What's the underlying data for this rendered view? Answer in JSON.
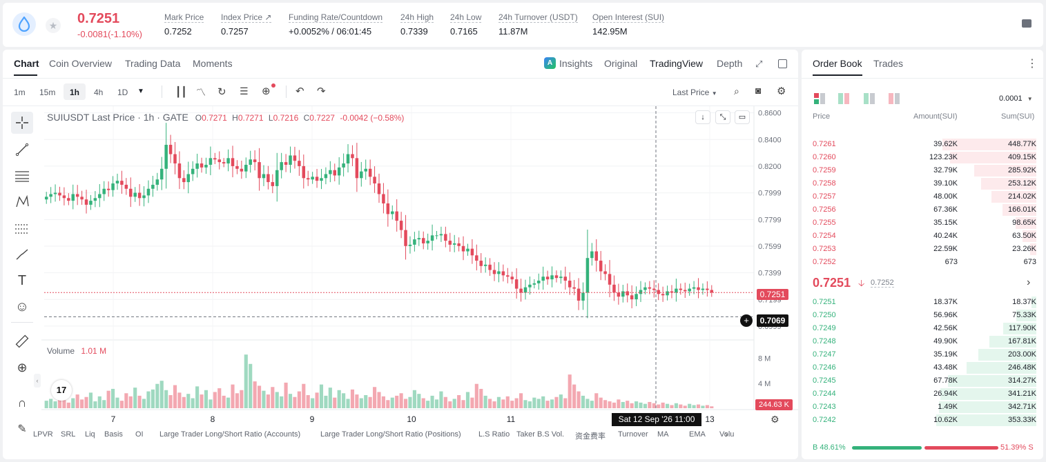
{
  "header": {
    "price": "0.7251",
    "change": "-0.0081(-1.10%)",
    "stats": [
      {
        "label": "Mark Price",
        "value": "0.7252"
      },
      {
        "label": "Index Price ↗",
        "value": "0.7257"
      },
      {
        "label": "Funding Rate/Countdown",
        "value_green": "+0.0052%",
        "value": "/ 06:01:45"
      },
      {
        "label": "24h High",
        "value": "0.7339"
      },
      {
        "label": "24h Low",
        "value": "0.7165"
      },
      {
        "label": "24h Turnover (USDT)",
        "value": "11.87M"
      },
      {
        "label": "Open Interest (SUI)",
        "value": "142.95M"
      }
    ]
  },
  "chart_tabs": [
    "Chart",
    "Coin Overview",
    "Trading Data",
    "Moments"
  ],
  "view_tabs": {
    "insights": "Insights",
    "original": "Original",
    "tradingview": "TradingView",
    "depth": "Depth"
  },
  "intervals": [
    "1m",
    "15m",
    "1h",
    "4h",
    "1D"
  ],
  "price_type": "Last Price",
  "legend": {
    "symbol": "SUIUSDT Last Price · 1h · GATE",
    "o": "0.7271",
    "h": "0.7271",
    "l": "0.7216",
    "c": "0.7227",
    "chg": "-0.0042 (−0.58%)"
  },
  "volume_label": "Volume",
  "volume_value": "1.01 M",
  "price_axis": [
    "0.8600",
    "0.8400",
    "0.8200",
    "0.7999",
    "0.7799",
    "0.7599",
    "0.7399",
    "0.7199",
    "0.6999"
  ],
  "volume_axis": [
    "8 M",
    "4 M"
  ],
  "time_axis": [
    "7",
    "8",
    "9",
    "10",
    "11",
    "13"
  ],
  "last_price_tag": "0.7251",
  "cursor_price_tag": "0.7069",
  "cursor_time_tag": "Sat 12 Sep '26   11:00",
  "volume_tag": "244.63 K",
  "tv_logo": "17",
  "indicators": [
    "LPVR",
    "SRL",
    "Liq",
    "Basis",
    "OI",
    "Large Trader Long/Short Ratio (Accounts)",
    "Large Trader Long/Short Ratio (Positions)",
    "L.S Ratio",
    "Taker B.S Vol.",
    "资金费率",
    "Turnover",
    "MA",
    "EMA",
    "Volu"
  ],
  "chart_data": {
    "type": "candlestick",
    "ylim": [
      0.69,
      0.865
    ],
    "x_day_labels": [
      "7",
      "8",
      "9",
      "10",
      "11",
      "13"
    ],
    "close_series": [
      0.797,
      0.799,
      0.8,
      0.798,
      0.796,
      0.794,
      0.799,
      0.797,
      0.795,
      0.791,
      0.794,
      0.796,
      0.799,
      0.803,
      0.802,
      0.807,
      0.809,
      0.806,
      0.803,
      0.797,
      0.8,
      0.796,
      0.798,
      0.803,
      0.806,
      0.81,
      0.818,
      0.836,
      0.829,
      0.822,
      0.811,
      0.808,
      0.814,
      0.818,
      0.822,
      0.819,
      0.821,
      0.826,
      0.825,
      0.823,
      0.822,
      0.826,
      0.82,
      0.818,
      0.816,
      0.821,
      0.825,
      0.823,
      0.811,
      0.814,
      0.808,
      0.805,
      0.817,
      0.823,
      0.821,
      0.828,
      0.824,
      0.82,
      0.811,
      0.81,
      0.812,
      0.809,
      0.811,
      0.814,
      0.817,
      0.813,
      0.819,
      0.822,
      0.829,
      0.826,
      0.811,
      0.816,
      0.818,
      0.812,
      0.807,
      0.799,
      0.792,
      0.784,
      0.786,
      0.779,
      0.772,
      0.76,
      0.761,
      0.765,
      0.766,
      0.762,
      0.764,
      0.768,
      0.768,
      0.769,
      0.764,
      0.761,
      0.762,
      0.76,
      0.756,
      0.758,
      0.753,
      0.749,
      0.745,
      0.746,
      0.742,
      0.739,
      0.741,
      0.738,
      0.737,
      0.735,
      0.728,
      0.725,
      0.729,
      0.731,
      0.732,
      0.734,
      0.737,
      0.735,
      0.738,
      0.736,
      0.737,
      0.734,
      0.729,
      0.728,
      0.719,
      0.725,
      0.751,
      0.756,
      0.749,
      0.741,
      0.739,
      0.731,
      0.725,
      0.722,
      0.726,
      0.723,
      0.72,
      0.724,
      0.727,
      0.729,
      0.728,
      0.727,
      0.724,
      0.723,
      0.726,
      0.725,
      0.728,
      0.727,
      0.726,
      0.728,
      0.729,
      0.727,
      0.728,
      0.727,
      0.7251
    ],
    "volume_series": [
      1.2,
      1.5,
      1.1,
      2.0,
      1.3,
      0.9,
      1.6,
      2.2,
      1.4,
      1.8,
      2.5,
      1.1,
      1.9,
      1.3,
      2.8,
      3.1,
      1.7,
      1.2,
      2.4,
      1.9,
      3.3,
      2.0,
      1.5,
      2.7,
      3.0,
      3.9,
      4.4,
      2.9,
      2.1,
      3.7,
      2.5,
      1.8,
      2.3,
      1.6,
      3.5,
      2.2,
      2.9,
      1.4,
      2.6,
      3.2,
      2.0,
      1.7,
      3.8,
      2.4,
      2.9,
      8.6,
      7.1,
      4.3,
      3.6,
      2.8,
      2.2,
      3.4,
      2.6,
      1.9,
      4.1,
      2.3,
      1.8,
      2.7,
      3.9,
      2.1,
      1.6,
      2.5,
      3.8,
      2.0,
      3.3,
      1.7,
      2.9,
      2.4,
      1.5,
      3.0,
      2.2,
      1.6,
      2.1,
      1.8,
      3.4,
      2.6,
      1.9,
      1.3,
      1.7,
      2.0,
      2.4,
      1.5,
      1.8,
      2.9,
      2.3,
      1.6,
      1.2,
      2.0,
      1.4,
      2.7,
      1.8,
      1.1,
      1.5,
      2.1,
      1.3,
      2.6,
      1.7,
      3.9,
      3.1,
      2.0,
      1.5,
      1.1,
      1.8,
      1.4,
      1.9,
      1.2,
      1.6,
      2.4,
      1.3,
      1.1,
      1.7,
      1.5,
      1.9,
      1.2,
      1.4,
      1.8,
      2.2,
      1.6,
      5.4,
      3.8,
      2.7,
      2.0,
      1.5,
      1.2,
      2.4,
      1.7,
      1.3,
      1.1,
      0.9,
      1.4,
      1.0,
      1.2,
      0.8,
      1.1,
      0.9,
      0.7,
      1.0,
      0.8,
      0.6,
      0.9,
      0.7,
      0.5,
      0.8,
      0.6,
      0.4,
      0.7,
      0.5,
      0.6,
      0.4,
      0.5,
      0.3,
      0.2,
      0.24
    ]
  },
  "orderbook": {
    "tabs": [
      "Order Book",
      "Trades"
    ],
    "precision": "0.0001",
    "columns": [
      "Price",
      "Amount(SUI)",
      "Sum(SUI)"
    ],
    "asks": [
      {
        "price": "0.7261",
        "amount": "39.62K",
        "sum": "448.77K",
        "pct": 0.94
      },
      {
        "price": "0.7260",
        "amount": "123.23K",
        "sum": "409.15K",
        "pct": 0.86
      },
      {
        "price": "0.7259",
        "amount": "32.79K",
        "sum": "285.92K",
        "pct": 0.62
      },
      {
        "price": "0.7258",
        "amount": "39.10K",
        "sum": "253.12K",
        "pct": 0.55
      },
      {
        "price": "0.7257",
        "amount": "48.00K",
        "sum": "214.02K",
        "pct": 0.45
      },
      {
        "price": "0.7256",
        "amount": "67.36K",
        "sum": "166.01K",
        "pct": 0.34
      },
      {
        "price": "0.7255",
        "amount": "35.15K",
        "sum": "98.65K",
        "pct": 0.21
      },
      {
        "price": "0.7254",
        "amount": "40.24K",
        "sum": "63.50K",
        "pct": 0.14
      },
      {
        "price": "0.7253",
        "amount": "22.59K",
        "sum": "23.26K",
        "pct": 0.06
      },
      {
        "price": "0.7252",
        "amount": "673",
        "sum": "673",
        "pct": 0.0
      }
    ],
    "mid_price": "0.7251",
    "mid_mark": "0.7252",
    "bids": [
      {
        "price": "0.7251",
        "amount": "18.37K",
        "sum": "18.37K",
        "pct": 0.05
      },
      {
        "price": "0.7250",
        "amount": "56.96K",
        "sum": "75.33K",
        "pct": 0.2
      },
      {
        "price": "0.7249",
        "amount": "42.56K",
        "sum": "117.90K",
        "pct": 0.33
      },
      {
        "price": "0.7248",
        "amount": "49.90K",
        "sum": "167.81K",
        "pct": 0.47
      },
      {
        "price": "0.7247",
        "amount": "35.19K",
        "sum": "203.00K",
        "pct": 0.58
      },
      {
        "price": "0.7246",
        "amount": "43.48K",
        "sum": "246.48K",
        "pct": 0.7
      },
      {
        "price": "0.7245",
        "amount": "67.78K",
        "sum": "314.27K",
        "pct": 0.88
      },
      {
        "price": "0.7244",
        "amount": "26.94K",
        "sum": "341.21K",
        "pct": 0.96
      },
      {
        "price": "0.7243",
        "amount": "1.49K",
        "sum": "342.71K",
        "pct": 0.97
      },
      {
        "price": "0.7242",
        "amount": "10.62K",
        "sum": "353.33K",
        "pct": 1.0
      }
    ],
    "buy_ratio": "B 48.61%",
    "sell_ratio": "51.39% S",
    "buy_fraction": 0.4861
  },
  "colors": {
    "up": "#34b27b",
    "down": "#e34a5c",
    "up_vol": "#9fd9c0",
    "down_vol": "#f3a8b1"
  }
}
